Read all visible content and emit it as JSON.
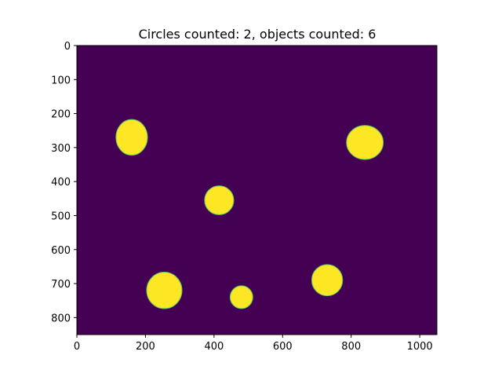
{
  "title": "Circles counted: 2, objects counted: 6",
  "image": {
    "width_data": 1050,
    "height_data": 850,
    "background_color": "#440154",
    "object_color": "#fde725",
    "edge_color": "#5ec962",
    "objects": [
      {
        "cx": 160,
        "cy": 270,
        "rx": 92,
        "ry": 105
      },
      {
        "cx": 840,
        "cy": 285,
        "rx": 107,
        "ry": 100
      },
      {
        "cx": 415,
        "cy": 455,
        "rx": 85,
        "ry": 85
      },
      {
        "cx": 255,
        "cy": 720,
        "rx": 103,
        "ry": 107
      },
      {
        "cx": 480,
        "cy": 740,
        "rx": 66,
        "ry": 67
      },
      {
        "cx": 730,
        "cy": 690,
        "rx": 90,
        "ry": 92
      }
    ]
  },
  "axes": {
    "x_ticks": [
      "0",
      "200",
      "400",
      "600",
      "800",
      "1000"
    ],
    "y_ticks": [
      "0",
      "100",
      "200",
      "300",
      "400",
      "500",
      "600",
      "700",
      "800"
    ]
  }
}
